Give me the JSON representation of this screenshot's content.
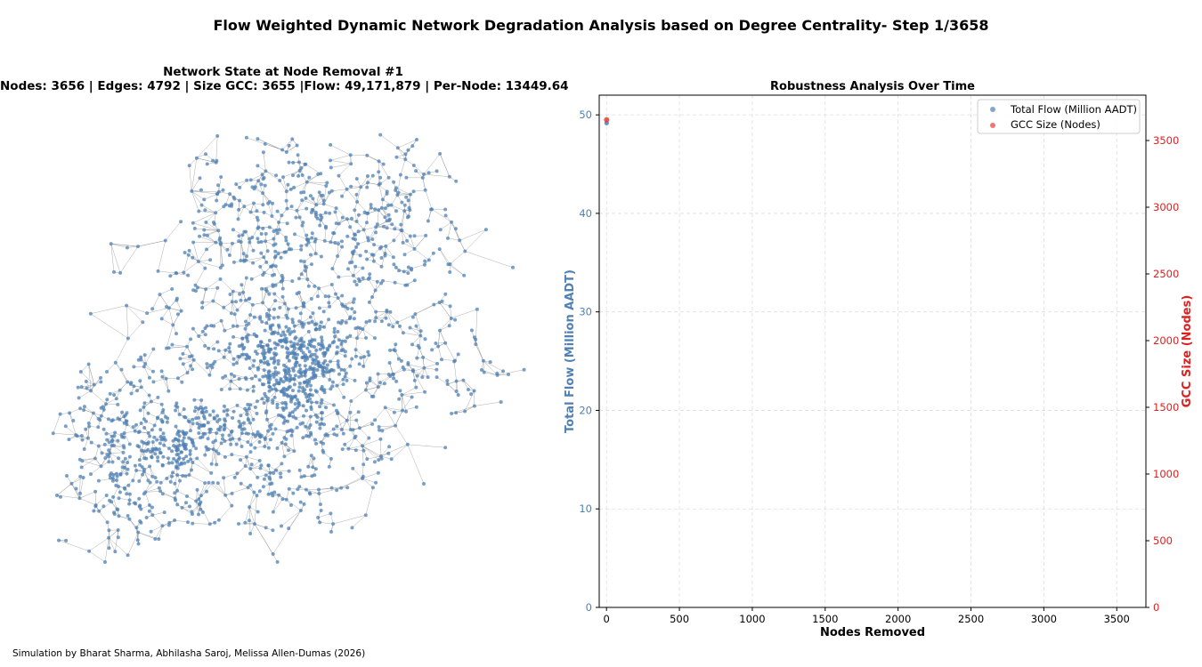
{
  "suptitle": "Flow Weighted Dynamic Network Degradation Analysis based on Degree Centrality- Step 1/3658",
  "network_panel": {
    "title_line1": "Network State at Node Removal #1",
    "title_line2": "Nodes: 3656 | Edges: 4792 | Size GCC: 3655 |Flow: 49,171,879 | Per-Node: 13449.64",
    "node_color": "#4f81b6",
    "edge_color": "#8a8a8a"
  },
  "credit": "Simulation by Bharat Sharma, Abhilasha Saroj, Melissa Allen-Dumas (2026)",
  "chart_data": {
    "type": "scatter",
    "title": "Robustness Analysis Over Time",
    "xlabel": "Nodes Removed",
    "ylabel_left": "Total Flow (Million AADT)",
    "ylabel_right": "GCC Size (Nodes)",
    "xlim": [
      -50,
      3700
    ],
    "ylim_left": [
      0,
      52
    ],
    "ylim_right": [
      0,
      3840
    ],
    "xticks": [
      0,
      500,
      1000,
      1500,
      2000,
      2500,
      3000,
      3500
    ],
    "yticks_left": [
      0,
      10,
      20,
      30,
      40,
      50
    ],
    "yticks_right": [
      0,
      500,
      1000,
      1500,
      2000,
      2500,
      3000,
      3500
    ],
    "grid": true,
    "legend_position": "upper right",
    "series": [
      {
        "name": "Total Flow (Million AADT)",
        "axis": "left",
        "color": "#4f81b6",
        "x": [
          1
        ],
        "y": [
          49.17
        ]
      },
      {
        "name": "GCC Size (Nodes)",
        "axis": "right",
        "color": "#e8393a",
        "x": [
          1
        ],
        "y": [
          3655
        ]
      }
    ],
    "left_axis_color": "#4f81b6",
    "right_axis_color": "#e02020"
  }
}
